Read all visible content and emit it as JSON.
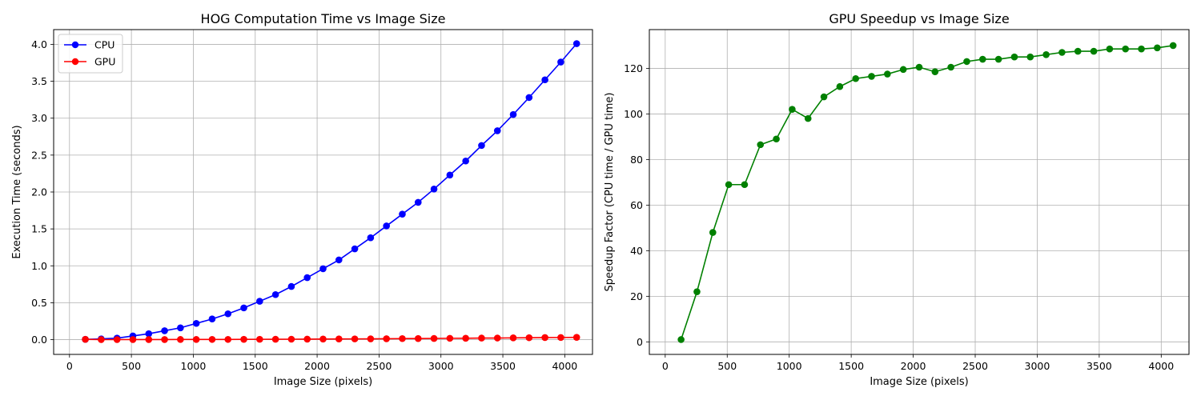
{
  "chart_data": [
    {
      "type": "line",
      "title": "HOG Computation Time vs Image Size",
      "xlabel": "Image Size (pixels)",
      "ylabel": "Execution Time (seconds)",
      "xlim": [
        -128,
        4224
      ],
      "ylim": [
        -0.2,
        4.2
      ],
      "xticks": [
        0,
        500,
        1000,
        1500,
        2000,
        2500,
        3000,
        3500,
        4000
      ],
      "yticks": [
        0.0,
        0.5,
        1.0,
        1.5,
        2.0,
        2.5,
        3.0,
        3.5,
        4.0
      ],
      "ytick_format": 1,
      "grid": true,
      "legend": "top-left",
      "x": [
        128,
        256,
        384,
        512,
        640,
        768,
        896,
        1024,
        1152,
        1280,
        1408,
        1536,
        1664,
        1792,
        1920,
        2048,
        2176,
        2304,
        2432,
        2560,
        2688,
        2816,
        2944,
        3072,
        3200,
        3328,
        3456,
        3584,
        3712,
        3840,
        3968,
        4096
      ],
      "series": [
        {
          "name": "CPU",
          "color": "#0000ff",
          "values": [
            0.004,
            0.01,
            0.02,
            0.05,
            0.08,
            0.12,
            0.16,
            0.22,
            0.28,
            0.35,
            0.43,
            0.52,
            0.61,
            0.72,
            0.84,
            0.96,
            1.08,
            1.23,
            1.38,
            1.54,
            1.7,
            1.86,
            2.04,
            2.23,
            2.42,
            2.63,
            2.83,
            3.05,
            3.28,
            3.52,
            3.76,
            4.01
          ]
        },
        {
          "name": "GPU",
          "color": "#ff0000",
          "values": [
            0.004,
            0.0005,
            0.0005,
            0.001,
            0.001,
            0.0015,
            0.002,
            0.002,
            0.003,
            0.003,
            0.004,
            0.0045,
            0.005,
            0.006,
            0.007,
            0.008,
            0.009,
            0.01,
            0.011,
            0.012,
            0.014,
            0.015,
            0.016,
            0.018,
            0.019,
            0.021,
            0.022,
            0.024,
            0.026,
            0.028,
            0.029,
            0.031
          ]
        }
      ]
    },
    {
      "type": "line",
      "title": "GPU Speedup vs Image Size",
      "xlabel": "Image Size (pixels)",
      "ylabel": "Speedup Factor (CPU time / GPU time)",
      "xlim": [
        -128,
        4224
      ],
      "ylim": [
        -5.5,
        137
      ],
      "xticks": [
        0,
        500,
        1000,
        1500,
        2000,
        2500,
        3000,
        3500,
        4000
      ],
      "yticks": [
        0,
        20,
        40,
        60,
        80,
        100,
        120
      ],
      "ytick_format": 0,
      "grid": true,
      "x": [
        128,
        256,
        384,
        512,
        640,
        768,
        896,
        1024,
        1152,
        1280,
        1408,
        1536,
        1664,
        1792,
        1920,
        2048,
        2176,
        2304,
        2432,
        2560,
        2688,
        2816,
        2944,
        3072,
        3200,
        3328,
        3456,
        3584,
        3712,
        3840,
        3968,
        4096
      ],
      "series": [
        {
          "color": "#008000",
          "values": [
            1,
            22,
            48,
            69,
            69,
            86.5,
            89,
            102,
            98,
            107.5,
            112,
            115.5,
            116.5,
            117.5,
            119.5,
            120.5,
            118.5,
            120.5,
            123,
            124,
            124,
            125,
            125,
            126,
            127,
            127.5,
            127.5,
            128.5,
            128.5,
            128.5,
            129,
            130
          ]
        }
      ]
    }
  ]
}
